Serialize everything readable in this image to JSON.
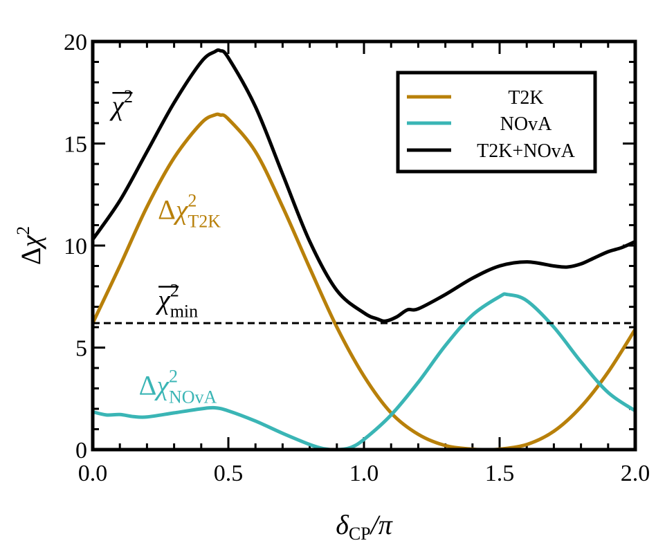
{
  "chart_data": {
    "type": "line",
    "title": "",
    "xlabel": {
      "symbol": "δ",
      "subscript": "CP",
      "suffix": "/π"
    },
    "ylabel": {
      "prefix": "Δ",
      "symbol": "χ",
      "superscript": "2"
    },
    "xlim": [
      0,
      2
    ],
    "ylim": [
      0,
      20
    ],
    "xticks": [
      "0.0",
      "0.5",
      "1.0",
      "1.5",
      "2.0"
    ],
    "yticks": [
      "0",
      "5",
      "10",
      "15",
      "20"
    ],
    "legend_position": "top-right",
    "series": [
      {
        "name": "T2K",
        "color": "#b8800a",
        "x": [
          0.0,
          0.1,
          0.2,
          0.3,
          0.4,
          0.45,
          0.47,
          0.5,
          0.6,
          0.7,
          0.8,
          0.9,
          1.0,
          1.1,
          1.2,
          1.3,
          1.4,
          1.45,
          1.5,
          1.6,
          1.7,
          1.8,
          1.9,
          2.0
        ],
        "y": [
          6.2,
          9.0,
          11.9,
          14.3,
          16.0,
          16.4,
          16.4,
          16.2,
          14.6,
          11.9,
          8.9,
          6.0,
          3.6,
          1.8,
          0.75,
          0.2,
          0.02,
          0.0,
          0.02,
          0.25,
          0.9,
          2.1,
          3.8,
          5.9
        ]
      },
      {
        "name": "NOvA",
        "color": "#3ab5b5",
        "x": [
          0.0,
          0.05,
          0.1,
          0.15,
          0.2,
          0.3,
          0.4,
          0.45,
          0.5,
          0.6,
          0.7,
          0.8,
          0.85,
          0.9,
          0.95,
          1.0,
          1.1,
          1.2,
          1.3,
          1.4,
          1.5,
          1.53,
          1.6,
          1.7,
          1.8,
          1.9,
          2.0
        ],
        "y": [
          1.85,
          1.7,
          1.72,
          1.62,
          1.6,
          1.8,
          2.0,
          2.05,
          1.9,
          1.4,
          0.8,
          0.25,
          0.05,
          0.0,
          0.1,
          0.5,
          1.7,
          3.3,
          5.1,
          6.6,
          7.5,
          7.6,
          7.3,
          6.0,
          4.3,
          2.8,
          1.9
        ]
      },
      {
        "name": "T2K+NOvA",
        "color": "#000000",
        "x": [
          0.0,
          0.1,
          0.2,
          0.3,
          0.4,
          0.45,
          0.47,
          0.5,
          0.6,
          0.7,
          0.8,
          0.9,
          1.0,
          1.05,
          1.08,
          1.12,
          1.16,
          1.2,
          1.3,
          1.4,
          1.5,
          1.6,
          1.7,
          1.75,
          1.8,
          1.85,
          1.9,
          1.95,
          2.0
        ],
        "y": [
          10.3,
          12.2,
          14.6,
          17.0,
          19.0,
          19.5,
          19.55,
          19.2,
          16.8,
          13.5,
          10.2,
          7.8,
          6.7,
          6.4,
          6.3,
          6.5,
          6.85,
          6.9,
          7.6,
          8.4,
          9.0,
          9.2,
          9.0,
          8.95,
          9.1,
          9.4,
          9.7,
          9.9,
          10.2
        ]
      }
    ],
    "reference_line": {
      "name": "chi2-min-line",
      "y": 6.2,
      "style": "dashed",
      "color": "#000000"
    },
    "annotations": [
      {
        "id": "chibar",
        "base": "χ",
        "sup": "2",
        "sub": "",
        "prefix": "",
        "color": "#000000",
        "at": [
          0.07,
          16.4
        ]
      },
      {
        "id": "t2k",
        "base": "χ",
        "sup": "2",
        "sub": "T2K",
        "prefix": "Δ",
        "color": "#b8800a",
        "at": [
          0.24,
          11.3
        ]
      },
      {
        "id": "chimin",
        "base": "χ",
        "sup": "2",
        "sub": "min",
        "prefix": "",
        "color": "#000000",
        "at": [
          0.24,
          6.9
        ]
      },
      {
        "id": "nova",
        "base": "χ",
        "sup": "2",
        "sub": "NOvA",
        "prefix": "Δ",
        "color": "#3ab5b5",
        "at": [
          0.17,
          2.7
        ]
      }
    ]
  }
}
